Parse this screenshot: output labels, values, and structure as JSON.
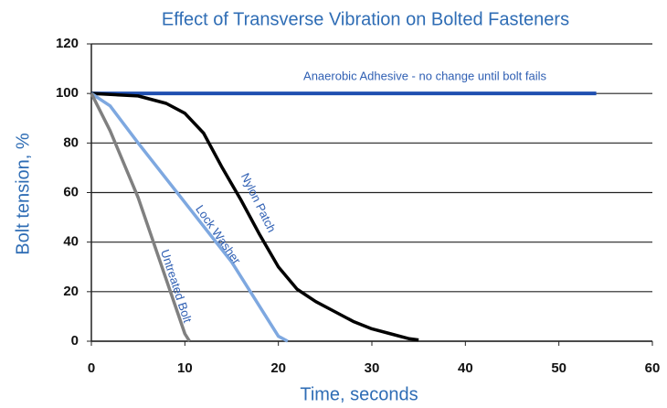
{
  "chart_data": {
    "type": "line",
    "title": "Effect of Transverse Vibration on Bolted Fasteners",
    "xlabel": "Time, seconds",
    "ylabel": "Bolt tension, %",
    "xlim": [
      0,
      60
    ],
    "xticks": [
      0,
      10,
      20,
      30,
      40,
      50,
      60
    ],
    "ylim": [
      0,
      120
    ],
    "yticks": [
      0,
      20,
      40,
      60,
      80,
      100,
      120
    ],
    "grid": true,
    "series": [
      {
        "name": "Anaerobic Adhesive - no change until bolt fails",
        "color": "#1f4fb0",
        "x": [
          0,
          54
        ],
        "values": [
          100,
          100
        ]
      },
      {
        "name": "Nylon Patch",
        "color": "#000000",
        "x": [
          0,
          5,
          8,
          10,
          12,
          14,
          16,
          18,
          20,
          22,
          24,
          26,
          28,
          30,
          32,
          34,
          35
        ],
        "values": [
          100,
          99,
          96,
          92,
          84,
          70,
          57,
          43,
          30,
          21,
          16,
          12,
          8,
          5,
          3,
          1,
          0.5
        ]
      },
      {
        "name": "Lock Washer",
        "color": "#7ea8e0",
        "x": [
          0,
          2,
          5,
          10,
          15,
          20,
          21
        ],
        "values": [
          100,
          95,
          80,
          56,
          32,
          2,
          0
        ]
      },
      {
        "name": "Untreated Bolt",
        "color": "#808080",
        "x": [
          0,
          2,
          5,
          8,
          10,
          10.5
        ],
        "values": [
          100,
          85,
          58,
          25,
          3,
          0
        ]
      }
    ]
  }
}
